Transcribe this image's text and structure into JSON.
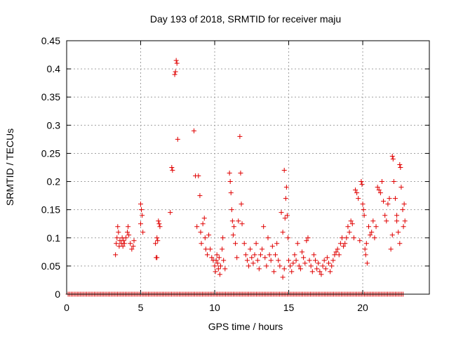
{
  "chart_data": {
    "type": "scatter",
    "title": "Day 193 of 2018, SRMTID for receiver maju",
    "xlabel": "GPS time / hours",
    "ylabel": "SRMTID / TECUs",
    "xlim": [
      0,
      24.5
    ],
    "ylim": [
      0,
      0.45
    ],
    "x_ticks": [
      0,
      5,
      10,
      15,
      20
    ],
    "y_ticks": [
      0,
      0.05,
      0.1,
      0.15,
      0.2,
      0.25,
      0.3,
      0.35,
      0.4,
      0.45
    ],
    "y_tick_labels": [
      "0",
      "0.05",
      "0.1",
      "0.15",
      "0.2",
      "0.25",
      "0.3",
      "0.35",
      "0.4",
      "0.45"
    ],
    "grid": true,
    "marker": "+",
    "color": "#e00000",
    "series": [
      {
        "name": "SRMTID",
        "points": [
          [
            3.3,
            0.07
          ],
          [
            3.35,
            0.09
          ],
          [
            3.4,
            0.1
          ],
          [
            3.45,
            0.12
          ],
          [
            3.5,
            0.11
          ],
          [
            3.55,
            0.085
          ],
          [
            3.6,
            0.095
          ],
          [
            3.7,
            0.09
          ],
          [
            3.75,
            0.1
          ],
          [
            3.8,
            0.085
          ],
          [
            3.85,
            0.095
          ],
          [
            3.9,
            0.09
          ],
          [
            4.0,
            0.1
          ],
          [
            4.1,
            0.11
          ],
          [
            4.15,
            0.12
          ],
          [
            4.2,
            0.105
          ],
          [
            4.3,
            0.09
          ],
          [
            4.4,
            0.08
          ],
          [
            4.5,
            0.085
          ],
          [
            4.55,
            0.095
          ],
          [
            5.0,
            0.16
          ],
          [
            5.05,
            0.15
          ],
          [
            5.1,
            0.14
          ],
          [
            5.15,
            0.11
          ],
          [
            5.0,
            0.125
          ],
          [
            6.0,
            0.09
          ],
          [
            6.05,
            0.065
          ],
          [
            6.1,
            0.1
          ],
          [
            6.15,
            0.095
          ],
          [
            6.2,
            0.13
          ],
          [
            6.25,
            0.125
          ],
          [
            6.3,
            0.12
          ],
          [
            6.1,
            0.065
          ],
          [
            7.0,
            0.145
          ],
          [
            7.1,
            0.225
          ],
          [
            7.15,
            0.22
          ],
          [
            7.3,
            0.39
          ],
          [
            7.35,
            0.395
          ],
          [
            7.4,
            0.415
          ],
          [
            7.45,
            0.41
          ],
          [
            7.5,
            0.275
          ],
          [
            8.6,
            0.29
          ],
          [
            8.7,
            0.21
          ],
          [
            8.8,
            0.12
          ],
          [
            8.9,
            0.21
          ],
          [
            9.0,
            0.175
          ],
          [
            9.05,
            0.11
          ],
          [
            9.1,
            0.09
          ],
          [
            9.2,
            0.125
          ],
          [
            9.3,
            0.135
          ],
          [
            9.35,
            0.1
          ],
          [
            9.4,
            0.08
          ],
          [
            9.5,
            0.07
          ],
          [
            9.6,
            0.105
          ],
          [
            9.7,
            0.08
          ],
          [
            9.8,
            0.065
          ],
          [
            9.9,
            0.06
          ],
          [
            10.0,
            0.05
          ],
          [
            10.05,
            0.04
          ],
          [
            10.1,
            0.06
          ],
          [
            10.15,
            0.07
          ],
          [
            10.2,
            0.055
          ],
          [
            10.25,
            0.045
          ],
          [
            10.3,
            0.065
          ],
          [
            10.35,
            0.035
          ],
          [
            10.4,
            0.05
          ],
          [
            10.5,
            0.08
          ],
          [
            10.55,
            0.1
          ],
          [
            10.6,
            0.06
          ],
          [
            10.7,
            0.045
          ],
          [
            11.0,
            0.215
          ],
          [
            11.05,
            0.2
          ],
          [
            11.1,
            0.18
          ],
          [
            11.15,
            0.15
          ],
          [
            11.2,
            0.13
          ],
          [
            11.25,
            0.105
          ],
          [
            11.3,
            0.12
          ],
          [
            11.4,
            0.09
          ],
          [
            11.5,
            0.065
          ],
          [
            11.6,
            0.13
          ],
          [
            11.7,
            0.28
          ],
          [
            11.75,
            0.215
          ],
          [
            11.8,
            0.16
          ],
          [
            11.85,
            0.125
          ],
          [
            12.0,
            0.09
          ],
          [
            12.1,
            0.07
          ],
          [
            12.2,
            0.06
          ],
          [
            12.3,
            0.05
          ],
          [
            12.4,
            0.08
          ],
          [
            12.5,
            0.065
          ],
          [
            12.6,
            0.055
          ],
          [
            12.7,
            0.07
          ],
          [
            12.8,
            0.09
          ],
          [
            12.9,
            0.06
          ],
          [
            13.0,
            0.045
          ],
          [
            13.1,
            0.07
          ],
          [
            13.2,
            0.08
          ],
          [
            13.3,
            0.12
          ],
          [
            13.4,
            0.065
          ],
          [
            13.5,
            0.05
          ],
          [
            13.6,
            0.1
          ],
          [
            13.7,
            0.07
          ],
          [
            13.8,
            0.06
          ],
          [
            13.9,
            0.085
          ],
          [
            14.0,
            0.04
          ],
          [
            14.1,
            0.07
          ],
          [
            14.2,
            0.09
          ],
          [
            14.3,
            0.06
          ],
          [
            14.4,
            0.05
          ],
          [
            14.5,
            0.145
          ],
          [
            14.6,
            0.11
          ],
          [
            14.7,
            0.22
          ],
          [
            14.75,
            0.135
          ],
          [
            14.8,
            0.17
          ],
          [
            14.85,
            0.19
          ],
          [
            14.9,
            0.14
          ],
          [
            14.95,
            0.1
          ],
          [
            14.6,
            0.03
          ],
          [
            14.7,
            0.045
          ],
          [
            15.0,
            0.06
          ],
          [
            15.1,
            0.05
          ],
          [
            15.2,
            0.04
          ],
          [
            15.3,
            0.055
          ],
          [
            15.4,
            0.07
          ],
          [
            15.5,
            0.06
          ],
          [
            15.6,
            0.09
          ],
          [
            15.7,
            0.05
          ],
          [
            15.8,
            0.045
          ],
          [
            15.9,
            0.075
          ],
          [
            16.0,
            0.065
          ],
          [
            16.1,
            0.055
          ],
          [
            16.2,
            0.095
          ],
          [
            16.3,
            0.1
          ],
          [
            16.4,
            0.06
          ],
          [
            16.5,
            0.05
          ],
          [
            16.6,
            0.04
          ],
          [
            16.7,
            0.07
          ],
          [
            16.8,
            0.06
          ],
          [
            16.9,
            0.045
          ],
          [
            17.0,
            0.055
          ],
          [
            17.1,
            0.04
          ],
          [
            17.2,
            0.035
          ],
          [
            17.3,
            0.05
          ],
          [
            17.4,
            0.06
          ],
          [
            17.5,
            0.045
          ],
          [
            17.6,
            0.065
          ],
          [
            17.7,
            0.055
          ],
          [
            17.8,
            0.04
          ],
          [
            17.9,
            0.05
          ],
          [
            18.0,
            0.06
          ],
          [
            18.1,
            0.07
          ],
          [
            18.2,
            0.075
          ],
          [
            18.3,
            0.08
          ],
          [
            18.4,
            0.07
          ],
          [
            18.5,
            0.09
          ],
          [
            18.6,
            0.1
          ],
          [
            18.7,
            0.085
          ],
          [
            18.8,
            0.09
          ],
          [
            18.9,
            0.1
          ],
          [
            19.0,
            0.12
          ],
          [
            19.1,
            0.11
          ],
          [
            19.2,
            0.13
          ],
          [
            19.3,
            0.125
          ],
          [
            19.4,
            0.1
          ],
          [
            19.5,
            0.185
          ],
          [
            19.6,
            0.18
          ],
          [
            19.7,
            0.17
          ],
          [
            19.8,
            0.095
          ],
          [
            19.9,
            0.2
          ],
          [
            19.95,
            0.195
          ],
          [
            20.0,
            0.16
          ],
          [
            20.05,
            0.15
          ],
          [
            20.1,
            0.14
          ],
          [
            20.15,
            0.08
          ],
          [
            20.2,
            0.07
          ],
          [
            20.25,
            0.09
          ],
          [
            20.3,
            0.055
          ],
          [
            20.4,
            0.12
          ],
          [
            20.5,
            0.105
          ],
          [
            20.6,
            0.11
          ],
          [
            20.7,
            0.13
          ],
          [
            20.8,
            0.1
          ],
          [
            20.9,
            0.12
          ],
          [
            21.0,
            0.19
          ],
          [
            21.1,
            0.185
          ],
          [
            21.2,
            0.18
          ],
          [
            21.3,
            0.2
          ],
          [
            21.4,
            0.165
          ],
          [
            21.5,
            0.14
          ],
          [
            21.6,
            0.13
          ],
          [
            21.7,
            0.16
          ],
          [
            21.8,
            0.17
          ],
          [
            21.9,
            0.08
          ],
          [
            22.0,
            0.245
          ],
          [
            22.05,
            0.24
          ],
          [
            22.1,
            0.2
          ],
          [
            22.2,
            0.17
          ],
          [
            22.3,
            0.14
          ],
          [
            22.4,
            0.11
          ],
          [
            22.5,
            0.23
          ],
          [
            22.55,
            0.225
          ],
          [
            22.6,
            0.19
          ],
          [
            22.7,
            0.15
          ],
          [
            22.75,
            0.12
          ],
          [
            22.8,
            0.16
          ],
          [
            22.85,
            0.13
          ],
          [
            22.0,
            0.105
          ],
          [
            22.3,
            0.13
          ],
          [
            22.5,
            0.09
          ]
        ]
      }
    ]
  }
}
